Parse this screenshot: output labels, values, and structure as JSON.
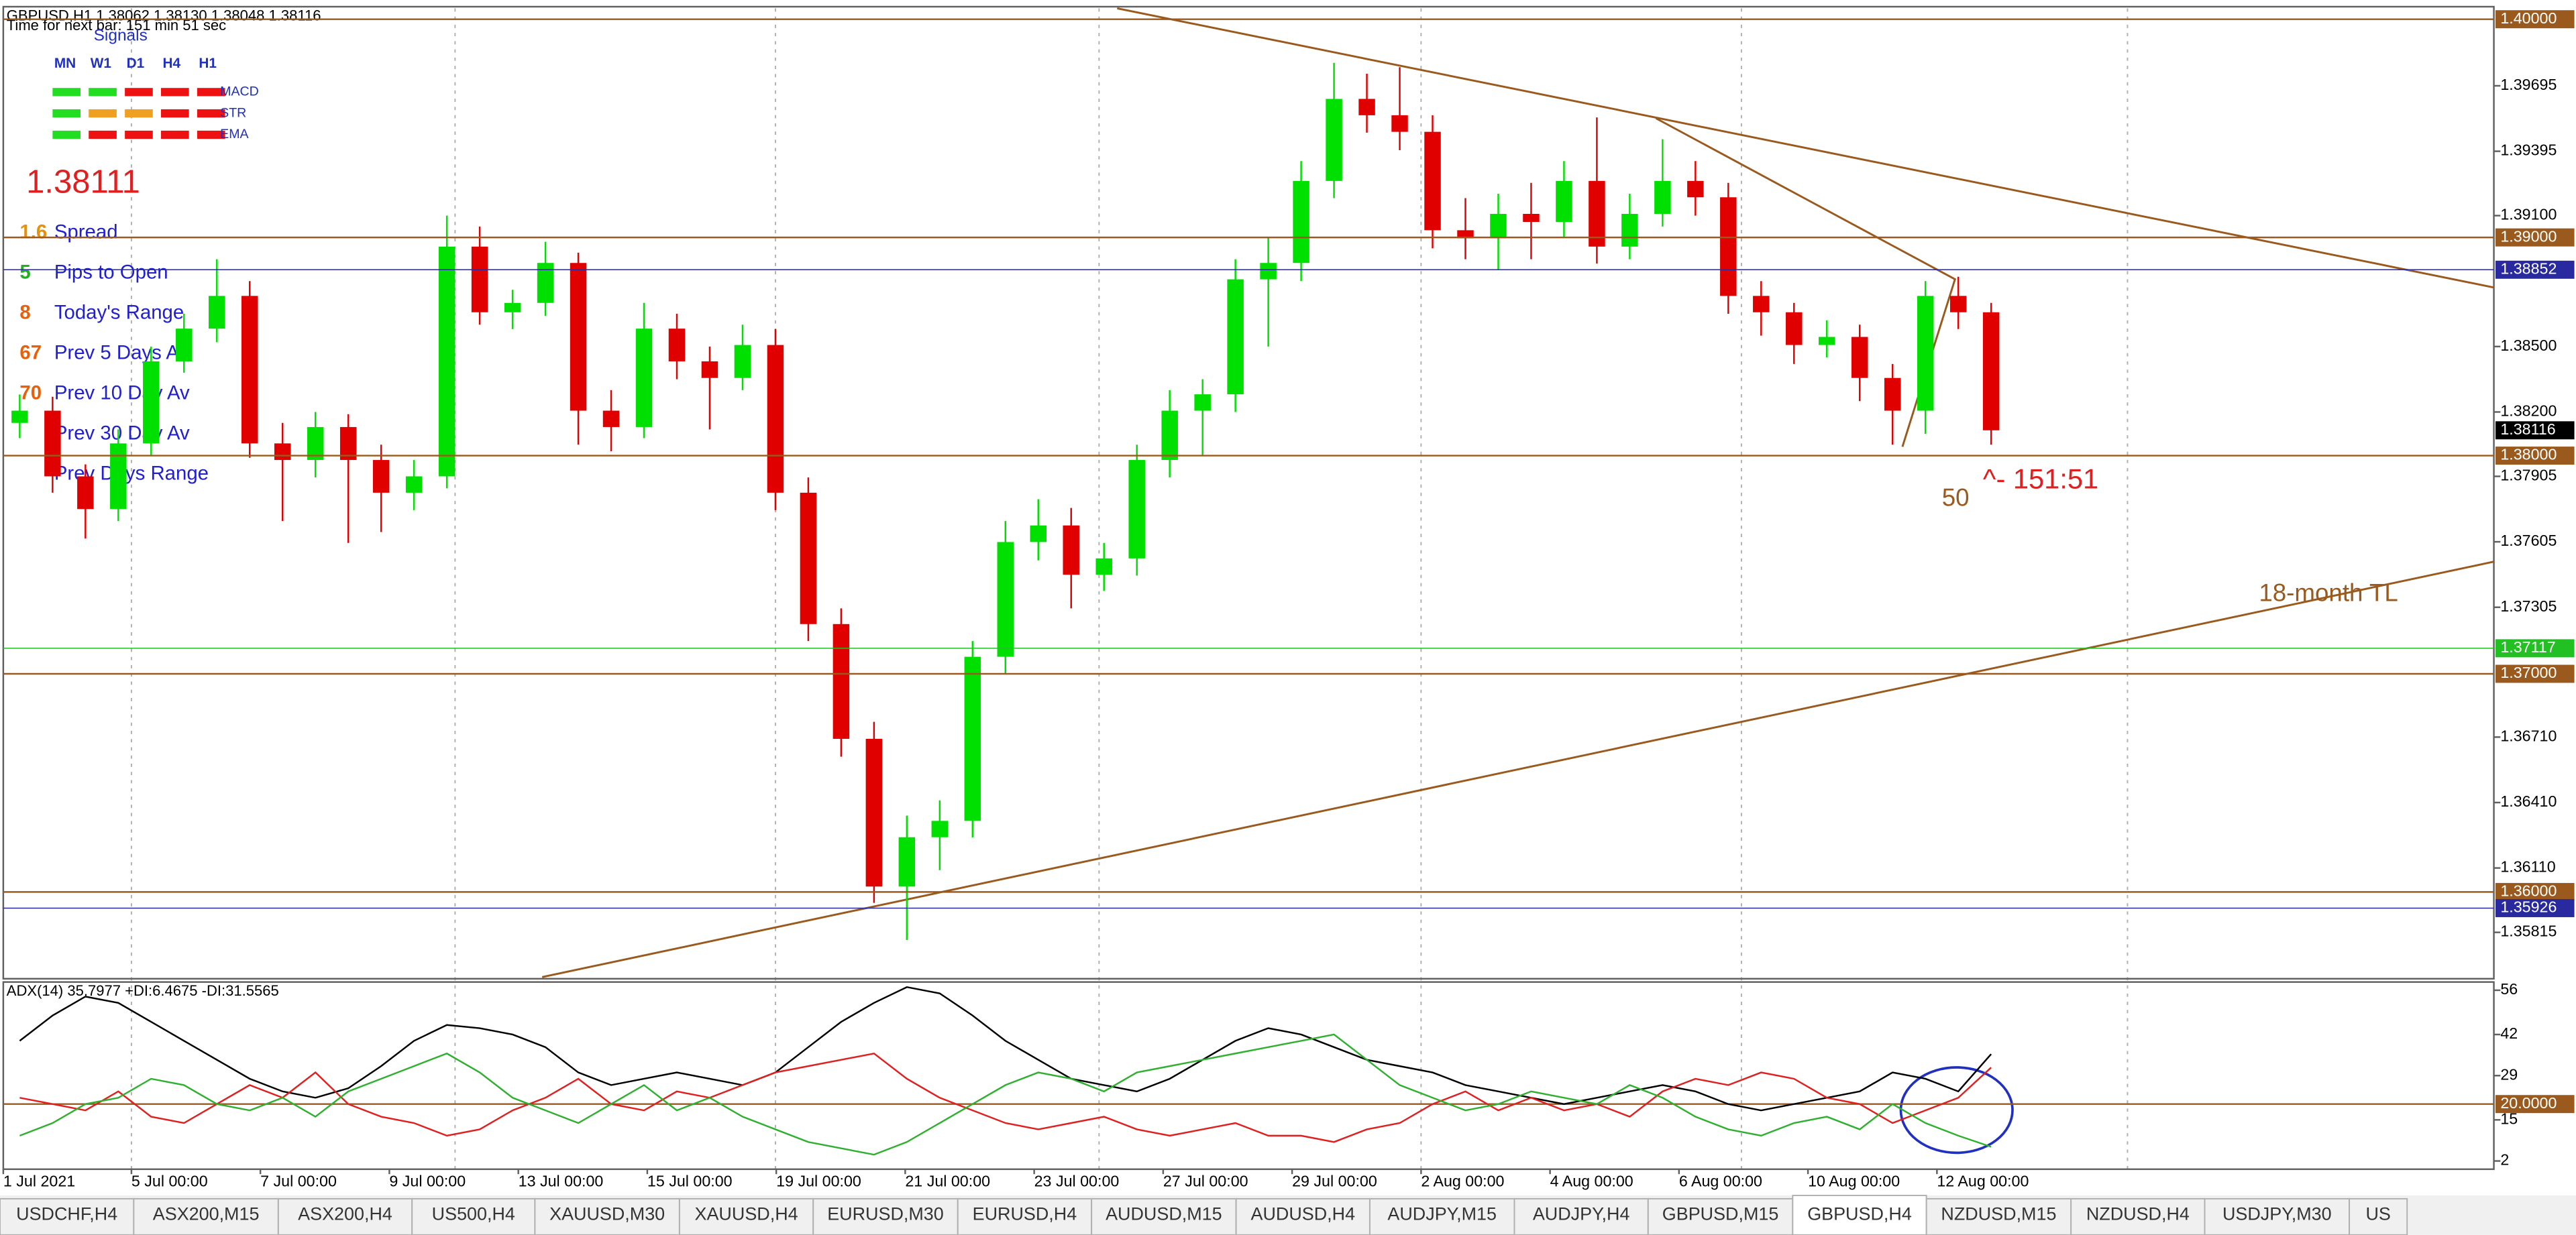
{
  "header": {
    "quote": "GBPUSD,H1  1.38062 1.38130 1.38048 1.38116",
    "timer": "Time for next bar: 151 min 51 sec"
  },
  "signals": {
    "title": "Signals",
    "columns": [
      "MN",
      "W1",
      "D1",
      "H4",
      "H1"
    ],
    "rows": [
      {
        "name": "MACD",
        "colors": [
          "#22dd22",
          "#22dd22",
          "#ee1111",
          "#ee1111",
          "#ee1111"
        ]
      },
      {
        "name": "STR",
        "colors": [
          "#22dd22",
          "#f0a020",
          "#f0a020",
          "#ee1111",
          "#ee1111"
        ]
      },
      {
        "name": "EMA",
        "colors": [
          "#22dd22",
          "#ee1111",
          "#ee1111",
          "#ee1111",
          "#ee1111"
        ]
      }
    ]
  },
  "info": {
    "price": 1.38111,
    "rows": [
      {
        "value": 1.6,
        "label": "Spread",
        "color": "#e8900a"
      },
      {
        "value": 5,
        "label": "Pips to Open",
        "color": "#22b022"
      },
      {
        "value": 8,
        "label": "Today's Range",
        "color": "#e8600a"
      },
      {
        "value": 67,
        "label": "Prev 5 Days Av",
        "color": "#e8600a"
      },
      {
        "value": 70,
        "label": "Prev 10 Day Av",
        "color": "#e8600a"
      },
      {
        "label": "Prev 30 Day Av",
        "color": "#e8600a"
      },
      {
        "label": "Prev Days Range",
        "color": "#e8600a"
      }
    ]
  },
  "chart_data": [
    {
      "type": "candlestick",
      "up_color": "#00e000",
      "down_color": "#e00000",
      "candles": [
        [
          1.3815,
          1.3828,
          1.3808,
          1.38206
        ],
        [
          1.38206,
          1.3827,
          1.3783,
          1.37905
        ],
        [
          1.37905,
          1.3796,
          1.3762,
          1.37755
        ],
        [
          1.37755,
          1.3812,
          1.377,
          1.38056
        ],
        [
          1.38056,
          1.385,
          1.38,
          1.38432
        ],
        [
          1.38432,
          1.3865,
          1.3838,
          1.38582
        ],
        [
          1.38582,
          1.389,
          1.3852,
          1.38732
        ],
        [
          1.38732,
          1.388,
          1.3799,
          1.38056
        ],
        [
          1.38056,
          1.3815,
          1.377,
          1.3798
        ],
        [
          1.3798,
          1.382,
          1.379,
          1.38131
        ],
        [
          1.38131,
          1.3819,
          1.376,
          1.3798
        ],
        [
          1.3798,
          1.3805,
          1.3765,
          1.3783
        ],
        [
          1.3783,
          1.3798,
          1.3775,
          1.37905
        ],
        [
          1.37905,
          1.391,
          1.3785,
          1.38958
        ],
        [
          1.38958,
          1.3905,
          1.386,
          1.38657
        ],
        [
          1.38657,
          1.3876,
          1.3858,
          1.387
        ],
        [
          1.387,
          1.3898,
          1.3864,
          1.38883
        ],
        [
          1.38883,
          1.3893,
          1.3805,
          1.38206
        ],
        [
          1.38206,
          1.383,
          1.3802,
          1.38131
        ],
        [
          1.38131,
          1.387,
          1.3808,
          1.38582
        ],
        [
          1.38582,
          1.3865,
          1.3835,
          1.38432
        ],
        [
          1.38432,
          1.385,
          1.3812,
          1.38356
        ],
        [
          1.38356,
          1.386,
          1.383,
          1.38507
        ],
        [
          1.38507,
          1.3858,
          1.3775,
          1.3783
        ],
        [
          1.3783,
          1.379,
          1.3715,
          1.37228
        ],
        [
          1.37228,
          1.373,
          1.3662,
          1.36702
        ],
        [
          1.36702,
          1.3678,
          1.3595,
          1.36025
        ],
        [
          1.36025,
          1.3635,
          1.3578,
          1.36251
        ],
        [
          1.36251,
          1.3642,
          1.361,
          1.36326
        ],
        [
          1.36326,
          1.3715,
          1.3625,
          1.37078
        ],
        [
          1.37078,
          1.377,
          1.37,
          1.37604
        ],
        [
          1.37604,
          1.378,
          1.3752,
          1.3768
        ],
        [
          1.3768,
          1.3776,
          1.373,
          1.37454
        ],
        [
          1.37454,
          1.376,
          1.3738,
          1.37529
        ],
        [
          1.37529,
          1.3805,
          1.3745,
          1.3798
        ],
        [
          1.3798,
          1.383,
          1.379,
          1.38206
        ],
        [
          1.38206,
          1.3835,
          1.38,
          1.38281
        ],
        [
          1.38281,
          1.389,
          1.382,
          1.38808
        ],
        [
          1.38808,
          1.39,
          1.385,
          1.38883
        ],
        [
          1.38883,
          1.3935,
          1.388,
          1.39259
        ],
        [
          1.39259,
          1.398,
          1.3918,
          1.39635
        ],
        [
          1.39635,
          1.3975,
          1.3948,
          1.3956
        ],
        [
          1.3956,
          1.3978,
          1.394,
          1.39484
        ],
        [
          1.39484,
          1.3956,
          1.3895,
          1.39033
        ],
        [
          1.39033,
          1.3918,
          1.389,
          1.38996
        ],
        [
          1.38996,
          1.392,
          1.3885,
          1.39108
        ],
        [
          1.39108,
          1.3925,
          1.389,
          1.39071
        ],
        [
          1.39071,
          1.3935,
          1.39,
          1.39259
        ],
        [
          1.39259,
          1.3955,
          1.3888,
          1.38958
        ],
        [
          1.38958,
          1.392,
          1.389,
          1.39108
        ],
        [
          1.39108,
          1.3945,
          1.3905,
          1.39259
        ],
        [
          1.39259,
          1.3935,
          1.391,
          1.39184
        ],
        [
          1.39184,
          1.3925,
          1.3865,
          1.38732
        ],
        [
          1.38732,
          1.388,
          1.3855,
          1.38657
        ],
        [
          1.38657,
          1.387,
          1.3842,
          1.38507
        ],
        [
          1.38507,
          1.3862,
          1.3845,
          1.38544
        ],
        [
          1.38544,
          1.386,
          1.3825,
          1.38356
        ],
        [
          1.38356,
          1.3842,
          1.3805,
          1.38206
        ],
        [
          1.38206,
          1.388,
          1.381,
          1.38732
        ],
        [
          1.38732,
          1.3882,
          1.3858,
          1.38657
        ],
        [
          1.38657,
          1.387,
          1.3805,
          1.38116
        ]
      ],
      "ylim": [
        1.3561,
        1.4005
      ],
      "yticks": [
        1.39695,
        1.39395,
        {
          "value": 1.391,
          "label": "1.39100"
        },
        {
          "value": 1.385,
          "label": "1.38500"
        },
        {
          "value": 1.382,
          "label": "1.38200"
        },
        1.37905,
        1.37605,
        1.37305,
        {
          "value": 1.3671,
          "label": "1.36710"
        },
        {
          "value": 1.3641,
          "label": "1.36410"
        },
        {
          "value": 1.3611,
          "label": "1.36110"
        },
        1.35815
      ],
      "levels": [
        {
          "value": 1.4,
          "label": "1.40000",
          "color": "#9a5a1e"
        },
        {
          "value": 1.39,
          "label": "1.39000",
          "color": "#9a5a1e"
        },
        {
          "value": 1.38852,
          "color": "#2a2aa0"
        },
        {
          "value": 1.38116,
          "color": "#000000"
        },
        {
          "value": 1.38,
          "label": "1.38000",
          "color": "#9a5a1e"
        },
        {
          "value": 1.37117,
          "color": "#22c022"
        },
        {
          "value": 1.37,
          "label": "1.37000",
          "color": "#9a5a1e"
        },
        {
          "value": 1.36,
          "label": "1.36000",
          "color": "#9a5a1e"
        },
        {
          "value": 1.35926,
          "color": "#2a2aa0"
        }
      ],
      "time_labels": [
        "1 Jul 2021",
        "5 Jul 00:00",
        "7 Jul 00:00",
        "9 Jul 00:00",
        "13 Jul 00:00",
        "15 Jul 00:00",
        "19 Jul 00:00",
        "21 Jul 00:00",
        "23 Jul 00:00",
        "27 Jul 00:00",
        "29 Jul 00:00",
        "2 Aug 00:00",
        "4 Aug 00:00",
        "6 Aug 00:00",
        "10 Aug 00:00",
        "12 Aug 00:00"
      ],
      "annotations": {
        "pips": "50",
        "timer": "^- 151:51",
        "trendline": "18-month TL"
      }
    },
    {
      "type": "line",
      "title": "ADX(14) 35.7977 +DI:6.4675 -DI:31.5565",
      "series": [
        {
          "color": "#000000",
          "values": [
            40,
            48,
            54,
            52,
            46,
            40,
            34,
            28,
            24,
            22,
            25,
            32,
            40,
            45,
            44,
            42,
            38,
            30,
            26,
            28,
            30,
            28,
            26,
            30,
            38,
            46,
            52,
            57,
            55,
            48,
            40,
            34,
            28,
            26,
            24,
            28,
            34,
            40,
            44,
            42,
            38,
            34,
            32,
            30,
            26,
            24,
            22,
            20,
            22,
            24,
            26,
            24,
            20,
            18,
            20,
            22,
            24,
            30,
            28,
            24,
            35.7977
          ]
        },
        {
          "color": "#e02020",
          "values": [
            22,
            20,
            18,
            24,
            16,
            14,
            20,
            26,
            22,
            30,
            20,
            16,
            14,
            10,
            12,
            18,
            22,
            28,
            20,
            18,
            24,
            22,
            26,
            30,
            32,
            34,
            36,
            28,
            22,
            18,
            14,
            12,
            14,
            16,
            12,
            10,
            12,
            14,
            10,
            10,
            8,
            12,
            14,
            20,
            24,
            18,
            22,
            18,
            20,
            16,
            24,
            28,
            26,
            30,
            28,
            22,
            20,
            14,
            18,
            22,
            31.5565
          ]
        },
        {
          "color": "#30b030",
          "values": [
            10,
            14,
            20,
            22,
            28,
            26,
            20,
            18,
            22,
            16,
            24,
            28,
            32,
            36,
            30,
            22,
            18,
            14,
            20,
            26,
            18,
            22,
            16,
            12,
            8,
            6,
            4,
            8,
            14,
            20,
            26,
            30,
            28,
            24,
            30,
            32,
            34,
            36,
            38,
            40,
            42,
            34,
            26,
            22,
            18,
            20,
            24,
            22,
            20,
            26,
            22,
            16,
            12,
            10,
            14,
            16,
            12,
            20,
            14,
            10,
            6.4675
          ]
        }
      ],
      "ylim": [
        -0.6,
        58.6
      ],
      "yticks": [
        56,
        42,
        29,
        15,
        2
      ],
      "levels": [
        {
          "value": 20,
          "label": "20.0000",
          "color": "#9a5a1e"
        }
      ]
    }
  ],
  "tabs": {
    "items": [
      "USDCHF,H4",
      "ASX200,M15",
      "ASX200,H4",
      "US500,H4",
      "XAUUSD,M30",
      "XAUUSD,H4",
      "EURUSD,M30",
      "EURUSD,H4",
      "AUDUSD,M15",
      "AUDUSD,H4",
      "AUDJPY,M15",
      "AUDJPY,H4",
      "GBPUSD,M15",
      "GBPUSD,H4",
      "NZDUSD,M15",
      "NZDUSD,H4",
      "USDJPY,M30",
      "US"
    ],
    "active": 13
  }
}
